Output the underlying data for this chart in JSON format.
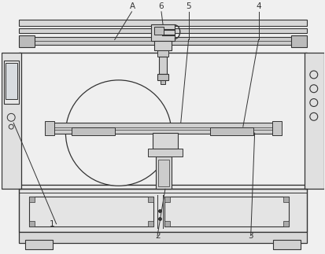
{
  "bg_color": "#f0f0f0",
  "line_color": "#333333",
  "white": "#ffffff",
  "light_gray": "#e8e8e8",
  "mid_gray": "#d0d0d0",
  "dark_gray": "#aaaaaa",
  "figsize": [
    4.14,
    3.23
  ],
  "dpi": 100,
  "labels": [
    "A",
    "6",
    "5",
    "4",
    "1",
    "2",
    "3"
  ],
  "label_fontsize": 8
}
